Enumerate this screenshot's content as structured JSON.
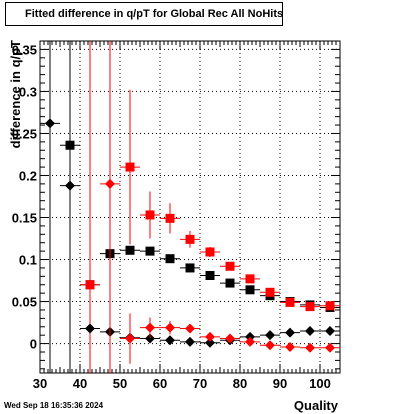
{
  "header": {
    "title": "Fitted difference in q/pT for Global Rec All NoHits",
    "datestamp": "Wed Sep 18 16:35:36 2024"
  },
  "chart_data": {
    "type": "scatter",
    "title": "Fitted difference in q/pT for Global Rec All NoHits",
    "xlabel": "Quality",
    "ylabel": "difference in q/pT",
    "xlim": [
      30,
      105
    ],
    "ylim": [
      -0.035,
      0.36
    ],
    "grid": true,
    "x_ticks": [
      30,
      40,
      50,
      60,
      70,
      80,
      90,
      100
    ],
    "y_ticks": [
      0,
      0.05,
      0.1,
      0.15,
      0.2,
      0.25,
      0.3,
      0.35
    ],
    "x_tick_labels": [
      "30",
      "40",
      "50",
      "60",
      "70",
      "80",
      "90",
      "100"
    ],
    "y_tick_labels": [
      "0",
      "0.05",
      "0.1",
      "0.15",
      "0.2",
      "0.25",
      "0.3",
      "0.35"
    ],
    "series": [
      {
        "marker": "square",
        "color": "#000000",
        "points": [
          {
            "x": 37.5,
            "y": 0.236,
            "yerr": 0.5
          },
          {
            "x": 42.5,
            "y": 0.07,
            "yerr": 0.0
          },
          {
            "x": 47.5,
            "y": 0.107,
            "yerr": 0.004
          },
          {
            "x": 52.5,
            "y": 0.111,
            "yerr": 0.004
          },
          {
            "x": 57.5,
            "y": 0.11,
            "yerr": 0.004
          },
          {
            "x": 62.5,
            "y": 0.101,
            "yerr": 0.003
          },
          {
            "x": 67.5,
            "y": 0.09,
            "yerr": 0.003
          },
          {
            "x": 72.5,
            "y": 0.081,
            "yerr": 0.003
          },
          {
            "x": 77.5,
            "y": 0.072,
            "yerr": 0.003
          },
          {
            "x": 82.5,
            "y": 0.064,
            "yerr": 0.002
          },
          {
            "x": 87.5,
            "y": 0.057,
            "yerr": 0.002
          },
          {
            "x": 92.5,
            "y": 0.05,
            "yerr": 0.002
          },
          {
            "x": 97.5,
            "y": 0.046,
            "yerr": 0.002
          },
          {
            "x": 102.5,
            "y": 0.043,
            "yerr": 0.002
          }
        ]
      },
      {
        "marker": "square",
        "color": "#ff0000",
        "points": [
          {
            "x": 42.5,
            "y": 0.07,
            "yerr": 0.5
          },
          {
            "x": 52.5,
            "y": 0.21,
            "yerr": 0.092
          },
          {
            "x": 57.5,
            "y": 0.153,
            "yerr": 0.028
          },
          {
            "x": 62.5,
            "y": 0.149,
            "yerr": 0.018
          },
          {
            "x": 67.5,
            "y": 0.124,
            "yerr": 0.01
          },
          {
            "x": 72.5,
            "y": 0.109,
            "yerr": 0.006
          },
          {
            "x": 77.5,
            "y": 0.092,
            "yerr": 0.004
          },
          {
            "x": 82.5,
            "y": 0.077,
            "yerr": 0.003
          },
          {
            "x": 87.5,
            "y": 0.061,
            "yerr": 0.003
          },
          {
            "x": 92.5,
            "y": 0.049,
            "yerr": 0.002
          },
          {
            "x": 97.5,
            "y": 0.044,
            "yerr": 0.002
          },
          {
            "x": 102.5,
            "y": 0.045,
            "yerr": 0.002
          }
        ]
      },
      {
        "marker": "diamond",
        "color": "#000000",
        "points": [
          {
            "x": 32.5,
            "y": 0.262,
            "yerr": 0.5
          },
          {
            "x": 37.5,
            "y": 0.188,
            "yerr": 0.5
          },
          {
            "x": 42.5,
            "y": 0.018,
            "yerr": 0.0
          },
          {
            "x": 47.5,
            "y": 0.014,
            "yerr": 0.003
          },
          {
            "x": 52.5,
            "y": 0.007,
            "yerr": 0.002
          },
          {
            "x": 57.5,
            "y": 0.006,
            "yerr": 0.002
          },
          {
            "x": 62.5,
            "y": 0.004,
            "yerr": 0.002
          },
          {
            "x": 67.5,
            "y": 0.002,
            "yerr": 0.001
          },
          {
            "x": 72.5,
            "y": 0.001,
            "yerr": 0.001
          },
          {
            "x": 77.5,
            "y": 0.004,
            "yerr": 0.001
          },
          {
            "x": 82.5,
            "y": 0.008,
            "yerr": 0.001
          },
          {
            "x": 87.5,
            "y": 0.01,
            "yerr": 0.001
          },
          {
            "x": 92.5,
            "y": 0.013,
            "yerr": 0.001
          },
          {
            "x": 97.5,
            "y": 0.015,
            "yerr": 0.001
          },
          {
            "x": 102.5,
            "y": 0.015,
            "yerr": 0.001
          }
        ]
      },
      {
        "marker": "diamond",
        "color": "#ff0000",
        "points": [
          {
            "x": 47.5,
            "y": 0.19,
            "yerr": 0.5
          },
          {
            "x": 52.5,
            "y": 0.006,
            "yerr": 0.03
          },
          {
            "x": 57.5,
            "y": 0.019,
            "yerr": 0.012
          },
          {
            "x": 62.5,
            "y": 0.019,
            "yerr": 0.008
          },
          {
            "x": 67.5,
            "y": 0.018,
            "yerr": 0.005
          },
          {
            "x": 72.5,
            "y": 0.008,
            "yerr": 0.004
          },
          {
            "x": 77.5,
            "y": 0.006,
            "yerr": 0.003
          },
          {
            "x": 82.5,
            "y": 0.002,
            "yerr": 0.002
          },
          {
            "x": 87.5,
            "y": -0.002,
            "yerr": 0.002
          },
          {
            "x": 92.5,
            "y": -0.004,
            "yerr": 0.002
          },
          {
            "x": 97.5,
            "y": -0.005,
            "yerr": 0.002
          },
          {
            "x": 102.5,
            "y": -0.005,
            "yerr": 0.002
          }
        ]
      }
    ]
  }
}
